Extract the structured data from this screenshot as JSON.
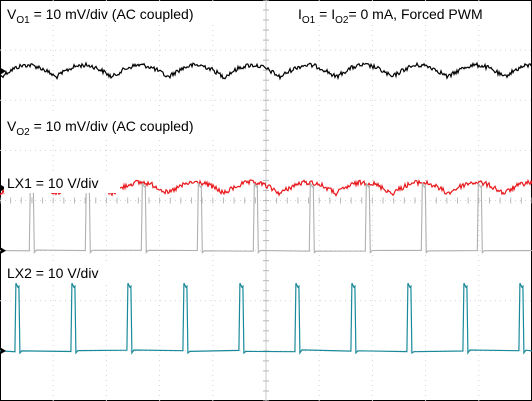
{
  "chart_data": {
    "type": "line",
    "title": "",
    "xlabel": "",
    "ylabel": "",
    "grid": true,
    "divisions": {
      "x": 10,
      "y": 8
    },
    "conditions": {
      "i1": "I",
      "i1_sub": "O1",
      "eq": " = ",
      "i2": "I",
      "i2_sub": "O2",
      "tail": "= 0 mA, Forced PWM"
    },
    "series": [
      {
        "name": "VO1",
        "label_main": "V",
        "label_sub": "O1",
        "label_rest": " = 10 mV/div (AC coupled)",
        "color": "#000000",
        "kind": "ripple",
        "periods": 9.5,
        "amplitude_div": 0.12,
        "noise_div": 0.045
      },
      {
        "name": "VO2",
        "label_main": "V",
        "label_sub": "O2",
        "label_rest": " = 10 mV/div (AC coupled)",
        "color": "#e8181c",
        "kind": "ripple",
        "periods": 9.5,
        "amplitude_div": 0.11,
        "noise_div": 0.05
      },
      {
        "name": "LX1",
        "label_main": "LX1 = 10 V/div",
        "label_sub": "",
        "label_rest": "",
        "color": "#b0b0b0",
        "kind": "pulse",
        "periods": 9.5,
        "height_div": 1.35,
        "duty": 0.03,
        "phase_div": 0.55
      },
      {
        "name": "LX2",
        "label_main": "LX2 = 10 V/div",
        "label_sub": "",
        "label_rest": "",
        "color": "#1a8a9a",
        "kind": "pulse",
        "periods": 9.5,
        "height_div": 1.35,
        "duty": 0.03,
        "phase_div": 0.28
      }
    ]
  }
}
